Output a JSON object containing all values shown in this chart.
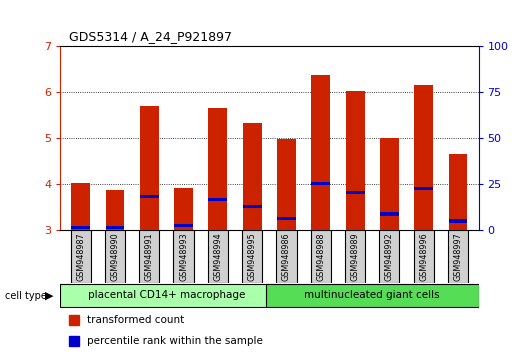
{
  "title": "GDS5314 / A_24_P921897",
  "samples": [
    "GSM948987",
    "GSM948990",
    "GSM948991",
    "GSM948993",
    "GSM948994",
    "GSM948995",
    "GSM948986",
    "GSM948988",
    "GSM948989",
    "GSM948992",
    "GSM948996",
    "GSM948997"
  ],
  "transformed_count": [
    4.02,
    3.87,
    5.7,
    3.92,
    5.65,
    5.32,
    4.97,
    6.38,
    6.02,
    5.0,
    6.15,
    4.65
  ],
  "percentile_rank": [
    3.05,
    3.05,
    3.73,
    3.1,
    3.67,
    3.52,
    3.25,
    4.02,
    3.82,
    3.35,
    3.9,
    3.2
  ],
  "groups": [
    {
      "label": "placental CD14+ macrophage",
      "color": "#aaffaa",
      "start": 0,
      "end": 6
    },
    {
      "label": "multinucleated giant cells",
      "color": "#55dd55",
      "start": 6,
      "end": 12
    }
  ],
  "ylim_left": [
    3.0,
    7.0
  ],
  "ylim_right": [
    0,
    100
  ],
  "yticks_left": [
    3,
    4,
    5,
    6,
    7
  ],
  "yticks_right": [
    0,
    25,
    50,
    75,
    100
  ],
  "bar_color": "#cc2200",
  "percentile_color": "#0000cc",
  "grid_color": "#000000",
  "background_color": "#ffffff",
  "tick_label_color_left": "#cc2200",
  "tick_label_color_right": "#0000cc",
  "bar_width": 0.55,
  "cell_type_label": "cell type",
  "legend_items": [
    {
      "label": "transformed count",
      "color": "#cc2200"
    },
    {
      "label": "percentile rank within the sample",
      "color": "#0000cc"
    }
  ]
}
